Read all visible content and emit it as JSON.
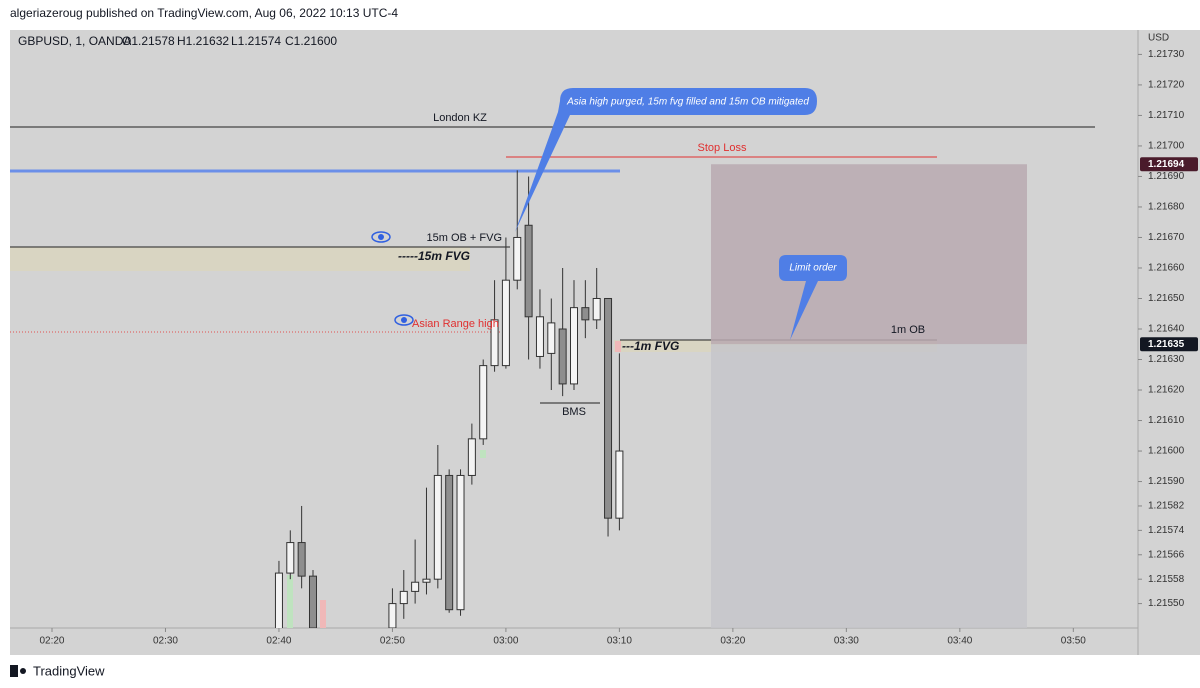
{
  "header": {
    "publisher": "algeriazeroug published on TradingView.com, Aug 06, 2022 10:13 UTC-4",
    "footer": "TradingView"
  },
  "chart_data": {
    "type": "candlestick",
    "symbol": "GBPUSD, 1, OANDA",
    "ohlc_labels": [
      "O1.21578",
      "H1.21632",
      "L1.21574",
      "C1.21600"
    ],
    "axis_unit": "USD",
    "candles": [
      {
        "x": 160,
        "open": 1.2154,
        "high": 1.21564,
        "low": 1.2154,
        "close": 1.2156
      },
      {
        "x": 161,
        "open": 1.2156,
        "high": 1.21574,
        "low": 1.21558,
        "close": 1.2157
      },
      {
        "x": 162,
        "open": 1.2157,
        "high": 1.21582,
        "low": 1.21555,
        "close": 1.21559
      },
      {
        "x": 163,
        "open": 1.21559,
        "high": 1.21561,
        "low": 1.2154,
        "close": 1.21542
      },
      {
        "x": 170,
        "open": 1.21542,
        "high": 1.21555,
        "low": 1.21542,
        "close": 1.2155
      },
      {
        "x": 171,
        "open": 1.2155,
        "high": 1.21561,
        "low": 1.21545,
        "close": 1.21554
      },
      {
        "x": 172,
        "open": 1.21554,
        "high": 1.21571,
        "low": 1.2155,
        "close": 1.21557
      },
      {
        "x": 173,
        "open": 1.21557,
        "high": 1.21588,
        "low": 1.21553,
        "close": 1.21558
      },
      {
        "x": 174,
        "open": 1.21558,
        "high": 1.21602,
        "low": 1.21555,
        "close": 1.21592
      },
      {
        "x": 175,
        "open": 1.21592,
        "high": 1.21594,
        "low": 1.21547,
        "close": 1.21548
      },
      {
        "x": 176,
        "open": 1.21548,
        "high": 1.21594,
        "low": 1.21546,
        "close": 1.21592
      },
      {
        "x": 177,
        "open": 1.21592,
        "high": 1.21609,
        "low": 1.21589,
        "close": 1.21604
      },
      {
        "x": 178,
        "open": 1.21604,
        "high": 1.2163,
        "low": 1.21602,
        "close": 1.21628
      },
      {
        "x": 179,
        "open": 1.21628,
        "high": 1.21656,
        "low": 1.21626,
        "close": 1.21643
      },
      {
        "x": 180,
        "open": 1.21628,
        "high": 1.2167,
        "low": 1.21627,
        "close": 1.21656
      },
      {
        "x": 181,
        "open": 1.21656,
        "high": 1.21692,
        "low": 1.21653,
        "close": 1.2167
      },
      {
        "x": 182,
        "open": 1.21674,
        "high": 1.2169,
        "low": 1.2163,
        "close": 1.21644
      },
      {
        "x": 183,
        "open": 1.21631,
        "high": 1.21653,
        "low": 1.21627,
        "close": 1.21644
      },
      {
        "x": 184,
        "open": 1.21632,
        "high": 1.2165,
        "low": 1.2162,
        "close": 1.21642
      },
      {
        "x": 185,
        "open": 1.2164,
        "high": 1.2166,
        "low": 1.21618,
        "close": 1.21622
      },
      {
        "x": 186,
        "open": 1.21622,
        "high": 1.21656,
        "low": 1.2162,
        "close": 1.21647
      },
      {
        "x": 187,
        "open": 1.21647,
        "high": 1.21656,
        "low": 1.21637,
        "close": 1.21643
      },
      {
        "x": 188,
        "open": 1.21643,
        "high": 1.2166,
        "low": 1.2164,
        "close": 1.2165
      },
      {
        "x": 189,
        "open": 1.2165,
        "high": 1.2165,
        "low": 1.21572,
        "close": 1.21578
      },
      {
        "x": 190,
        "open": 1.21578,
        "high": 1.21632,
        "low": 1.21574,
        "close": 1.216
      }
    ],
    "up_color": "#f4f4f4",
    "down_color": "#8e8e8e",
    "xlim": [
      136.3,
      235.7
    ],
    "xticks": [
      {
        "value": 140,
        "label": "02:20"
      },
      {
        "value": 150,
        "label": "02:30"
      },
      {
        "value": 160,
        "label": "02:40"
      },
      {
        "value": 170,
        "label": "02:50"
      },
      {
        "value": 180,
        "label": "03:00"
      },
      {
        "value": 190,
        "label": "03:10"
      },
      {
        "value": 200,
        "label": "03:20"
      },
      {
        "value": 210,
        "label": "03:30"
      },
      {
        "value": 220,
        "label": "03:40"
      },
      {
        "value": 230,
        "label": "03:50"
      }
    ],
    "ylim": [
      1.21542,
      1.21738
    ],
    "yticks": [
      {
        "value": 1.2173,
        "label": "1.21730"
      },
      {
        "value": 1.2172,
        "label": "1.21720"
      },
      {
        "value": 1.2171,
        "label": "1.21710"
      },
      {
        "value": 1.217,
        "label": "1.21700"
      },
      {
        "value": 1.2169,
        "label": "1.21690"
      },
      {
        "value": 1.2168,
        "label": "1.21680"
      },
      {
        "value": 1.2167,
        "label": "1.21670"
      },
      {
        "value": 1.2166,
        "label": "1.21660"
      },
      {
        "value": 1.2165,
        "label": "1.21650"
      },
      {
        "value": 1.2164,
        "label": "1.21640"
      },
      {
        "value": 1.2163,
        "label": "1.21630"
      },
      {
        "value": 1.2162,
        "label": "1.21620"
      },
      {
        "value": 1.2161,
        "label": "1.21610"
      },
      {
        "value": 1.216,
        "label": "1.21600"
      },
      {
        "value": 1.2159,
        "label": "1.21590"
      },
      1.21582,
      1.21574,
      1.21566,
      1.21558,
      {
        "value": 1.2155,
        "label": "1.21550"
      }
    ],
    "price_markers": [
      {
        "value": 1.21694,
        "color": "#4a1b2b"
      },
      {
        "value": 1.21635,
        "color": "#131722"
      }
    ],
    "annotations": {
      "london": "London KZ",
      "stop": "Stop Loss",
      "ob15": "15m OB + FVG",
      "fvg15": "-----15m FVG",
      "asian": "Asian Range high",
      "ob1": "1m OB",
      "fvg1": "---1m FVG",
      "bms": "BMS",
      "callout": "Asia high purged, 15m fvg filled and 15m OB mitigated",
      "limit": "Limit order"
    }
  }
}
